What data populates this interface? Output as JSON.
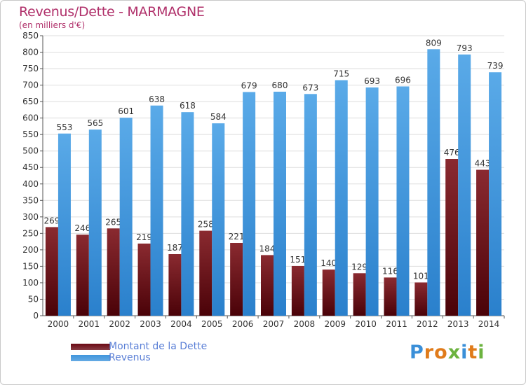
{
  "header": {
    "title": "Revenus/Dette - MARMAGNE",
    "subtitle": "(en milliers d'€)"
  },
  "legend": {
    "items": [
      {
        "label": "Montant de la Dette",
        "color": "#6a0a14"
      },
      {
        "label": "Revenus",
        "color": "#3f95dc"
      }
    ]
  },
  "logo": {
    "text": "Proxiti",
    "letters": [
      {
        "ch": "P",
        "color": "#3a8fd8"
      },
      {
        "ch": "r",
        "color": "#e07b1a"
      },
      {
        "ch": "o",
        "color": "#e07b1a"
      },
      {
        "ch": "x",
        "color": "#6cb33f"
      },
      {
        "ch": "i",
        "color": "#3a8fd8"
      },
      {
        "ch": "t",
        "color": "#e07b1a"
      },
      {
        "ch": "i",
        "color": "#6cb33f"
      }
    ]
  },
  "chart_data": {
    "type": "bar",
    "title": "Revenus/Dette - MARMAGNE",
    "subtitle": "(en milliers d'€)",
    "categories": [
      "2000",
      "2001",
      "2002",
      "2003",
      "2004",
      "2005",
      "2006",
      "2007",
      "2008",
      "2009",
      "2010",
      "2011",
      "2012",
      "2013",
      "2014"
    ],
    "series": [
      {
        "name": "Montant de la Dette",
        "color": "#6a0a14",
        "values": [
          269,
          246,
          265,
          219,
          187,
          258,
          221,
          184,
          151,
          140,
          129,
          116,
          101,
          476,
          443
        ]
      },
      {
        "name": "Revenus",
        "color": "#3f95dc",
        "values": [
          553,
          565,
          601,
          638,
          618,
          584,
          679,
          680,
          673,
          715,
          693,
          696,
          809,
          793,
          739
        ]
      }
    ],
    "ylim": [
      0,
      850
    ],
    "ytick_step": 50,
    "grid": true,
    "legend_position": "bottom-left"
  }
}
